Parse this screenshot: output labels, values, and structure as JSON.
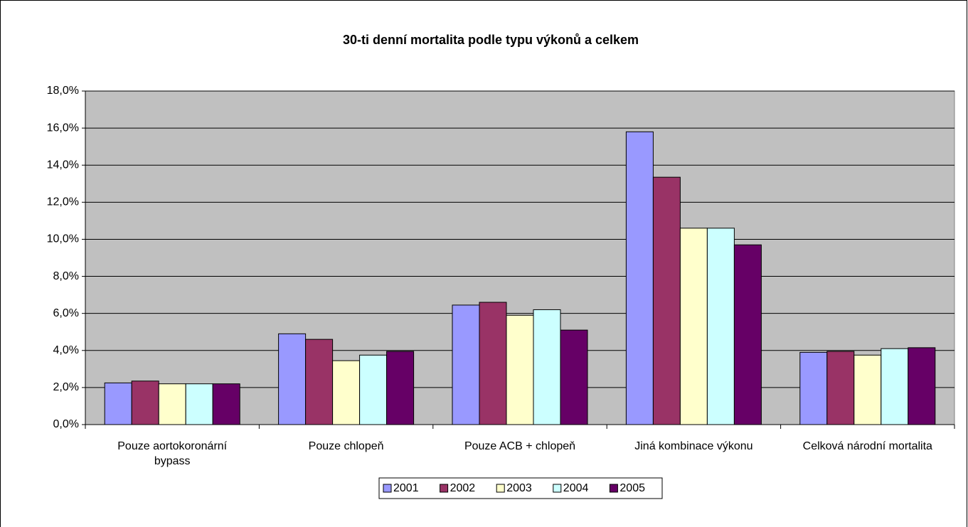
{
  "chart_data": {
    "type": "bar",
    "title": "30-ti denní mortalita podle typu výkonů a celkem",
    "categories": [
      "Pouze aortokoronární bypass",
      "Pouze chlopeň",
      "Pouze ACB + chlopeň",
      "Jiná kombinace výkonu",
      "Celková národní mortalita"
    ],
    "series": [
      {
        "name": "2001",
        "color": "#9999ff",
        "values": [
          2.25,
          4.9,
          6.45,
          15.8,
          3.9
        ]
      },
      {
        "name": "2002",
        "color": "#993366",
        "values": [
          2.35,
          4.6,
          6.6,
          13.35,
          3.95
        ]
      },
      {
        "name": "2003",
        "color": "#ffffcc",
        "values": [
          2.2,
          3.45,
          5.9,
          10.6,
          3.75
        ]
      },
      {
        "name": "2004",
        "color": "#ccffff",
        "values": [
          2.2,
          3.75,
          6.2,
          10.6,
          4.1
        ]
      },
      {
        "name": "2005",
        "color": "#660066",
        "values": [
          2.2,
          3.95,
          5.1,
          9.7,
          4.15
        ]
      }
    ],
    "ylim": [
      0,
      18
    ],
    "yticks": [
      {
        "value": 0,
        "label": "0,0%"
      },
      {
        "value": 2,
        "label": "2,0%"
      },
      {
        "value": 4,
        "label": "4,0%"
      },
      {
        "value": 6,
        "label": "6,0%"
      },
      {
        "value": 8,
        "label": "8,0%"
      },
      {
        "value": 10,
        "label": "10,0%"
      },
      {
        "value": 12,
        "label": "12,0%"
      },
      {
        "value": 14,
        "label": "14,0%"
      },
      {
        "value": 16,
        "label": "16,0%"
      },
      {
        "value": 18,
        "label": "18,0%"
      }
    ],
    "grid": true,
    "legend": "bottom",
    "plot_background": "#c0c0c0"
  }
}
